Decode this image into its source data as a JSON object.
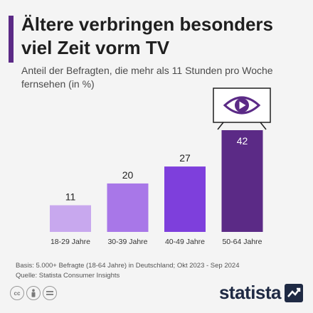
{
  "header": {
    "title": "Ältere verbringen besonders viel Zeit vorm TV",
    "subtitle": "Anteil der Befragten, die mehr als 11 Stunden pro Woche fernsehen (in %)"
  },
  "chart_data": {
    "type": "bar",
    "categories": [
      "18-29 Jahre",
      "30-39 Jahre",
      "40-49 Jahre",
      "50-64 Jahre"
    ],
    "values": [
      11,
      20,
      27,
      42
    ],
    "colors": [
      "#c8a8ee",
      "#a877e8",
      "#7e3fdc",
      "#5b2a86"
    ],
    "value_label_colors": [
      "#222222",
      "#222222",
      "#222222",
      "#ffffff"
    ],
    "title": "Ältere verbringen besonders viel Zeit vorm TV",
    "xlabel": "",
    "ylabel": "",
    "ylim": [
      0,
      42
    ],
    "grid": false
  },
  "footer": {
    "basis": "Basis: 5.000+ Befragte (18-64 Jahre) in Deutschland; Okt 2023 - Sep 2024",
    "source": "Quelle: Statista Consumer Insights"
  },
  "logo": {
    "text": "statista"
  },
  "icons": [
    "tv-eye-icon",
    "cc-icon",
    "attribution-icon",
    "no-derivatives-icon",
    "statista-logo-icon"
  ]
}
